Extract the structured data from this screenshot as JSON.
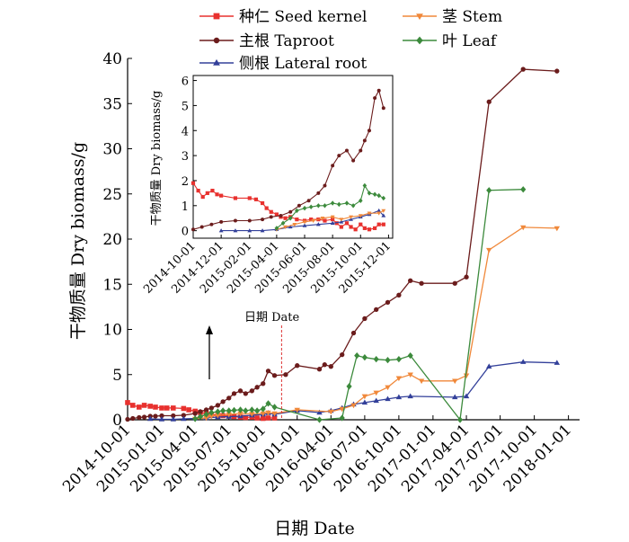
{
  "chart_data": [
    {
      "type": "line",
      "title": "",
      "xlabel": "日期 Date",
      "ylabel": "干物质量 Dry biomass/g",
      "xlim": [
        "2014-10-01",
        "2018-01-31"
      ],
      "ylim": [
        0,
        40
      ],
      "yticks": [
        0,
        5,
        10,
        15,
        20,
        25,
        30,
        35,
        40
      ],
      "xticks": [
        "2014-10-01",
        "2015-01-01",
        "2015-04-01",
        "2015-07-01",
        "2015-10-01",
        "2016-01-01",
        "2016-04-01",
        "2016-07-01",
        "2016-10-01",
        "2017-01-01",
        "2017-04-01",
        "2017-07-01",
        "2017-10-01",
        "2018-01-01"
      ],
      "legend": [
        {
          "label": "种仁 Seed kernel",
          "color": "#e8312e",
          "marker": "square"
        },
        {
          "label": "茎 Stem",
          "color": "#f0883a",
          "marker": "triangle-down"
        },
        {
          "label": "主根 Taproot",
          "color": "#6b1c1c",
          "marker": "circle"
        },
        {
          "label": "叶 Leaf",
          "color": "#3c8a3c",
          "marker": "diamond"
        },
        {
          "label": "侧根 Lateral root",
          "color": "#33409a",
          "marker": "triangle-up"
        }
      ],
      "series": [
        {
          "name": "种仁 Seed kernel",
          "color": "#e8312e",
          "marker": "square",
          "x": [
            "2014-10-01",
            "2014-10-15",
            "2014-11-01",
            "2014-11-15",
            "2014-12-01",
            "2014-12-15",
            "2015-01-01",
            "2015-01-15",
            "2015-02-01",
            "2015-03-01",
            "2015-03-15",
            "2015-04-01",
            "2015-04-15",
            "2015-05-01",
            "2015-05-15",
            "2015-06-01",
            "2015-06-15",
            "2015-07-01",
            "2015-07-15",
            "2015-08-01",
            "2015-08-15",
            "2015-09-01",
            "2015-09-15",
            "2015-10-01",
            "2015-10-15",
            "2015-11-01"
          ],
          "y": [
            1.9,
            1.6,
            1.4,
            1.6,
            1.5,
            1.4,
            1.3,
            1.3,
            1.3,
            1.25,
            1.1,
            0.95,
            0.8,
            0.7,
            0.6,
            0.5,
            0.45,
            0.4,
            0.35,
            0.3,
            0.25,
            0.3,
            0.2,
            0.15,
            0.2,
            0.2
          ]
        },
        {
          "name": "主根 Taproot",
          "color": "#6b1c1c",
          "marker": "circle",
          "x": [
            "2014-10-01",
            "2014-10-15",
            "2014-11-01",
            "2014-11-15",
            "2014-12-01",
            "2014-12-15",
            "2015-01-01",
            "2015-02-01",
            "2015-03-01",
            "2015-04-01",
            "2015-04-15",
            "2015-05-01",
            "2015-05-15",
            "2015-06-01",
            "2015-06-15",
            "2015-07-01",
            "2015-07-15",
            "2015-08-01",
            "2015-08-15",
            "2015-09-01",
            "2015-09-15",
            "2015-10-01",
            "2015-10-15",
            "2015-11-01",
            "2015-12-01",
            "2016-01-01",
            "2016-03-01",
            "2016-03-15",
            "2016-04-01",
            "2016-05-01",
            "2016-06-01",
            "2016-07-01",
            "2016-08-01",
            "2016-09-01",
            "2016-10-01",
            "2016-11-01",
            "2016-12-01",
            "2017-03-01",
            "2017-04-01",
            "2017-06-01",
            "2017-09-01",
            "2017-12-01"
          ],
          "y": [
            0.05,
            0.15,
            0.25,
            0.3,
            0.4,
            0.4,
            0.45,
            0.45,
            0.5,
            0.7,
            0.9,
            1.1,
            1.3,
            1.6,
            2.0,
            2.4,
            2.9,
            3.2,
            2.9,
            3.2,
            3.6,
            4.0,
            5.4,
            4.9,
            5.0,
            6.0,
            5.6,
            6.1,
            5.9,
            7.2,
            9.6,
            11.2,
            12.2,
            13.0,
            13.8,
            15.4,
            15.1,
            15.1,
            15.8,
            35.2,
            38.8,
            38.6
          ]
        },
        {
          "name": "侧根 Lateral root",
          "color": "#33409a",
          "marker": "triangle-up",
          "x": [
            "2014-12-01",
            "2015-01-01",
            "2015-02-01",
            "2015-03-01",
            "2015-04-01",
            "2015-05-01",
            "2015-06-01",
            "2015-07-01",
            "2015-08-01",
            "2015-09-01",
            "2015-10-01",
            "2015-10-15",
            "2015-11-01",
            "2016-01-01",
            "2016-03-01",
            "2016-04-01",
            "2016-05-01",
            "2016-06-01",
            "2016-07-01",
            "2016-08-01",
            "2016-09-01",
            "2016-10-01",
            "2016-11-01",
            "2017-03-01",
            "2017-04-01",
            "2017-06-01",
            "2017-09-01",
            "2017-12-01"
          ],
          "y": [
            0.1,
            0.05,
            0.05,
            0.1,
            0.15,
            0.2,
            0.3,
            0.35,
            0.4,
            0.5,
            0.6,
            0.75,
            0.6,
            1.0,
            0.8,
            1.0,
            1.3,
            1.7,
            1.9,
            2.1,
            2.3,
            2.5,
            2.6,
            2.5,
            2.6,
            5.9,
            6.4,
            6.3
          ]
        },
        {
          "name": "茎 Stem",
          "color": "#f0883a",
          "marker": "triangle-down",
          "x": [
            "2015-04-01",
            "2015-05-01",
            "2015-05-15",
            "2015-06-01",
            "2015-07-01",
            "2015-08-01",
            "2015-09-01",
            "2015-10-01",
            "2015-10-15",
            "2015-11-01",
            "2016-01-01",
            "2016-04-01",
            "2016-05-01",
            "2016-06-01",
            "2016-07-01",
            "2016-08-01",
            "2016-09-01",
            "2016-10-01",
            "2016-11-01",
            "2016-12-01",
            "2017-03-01",
            "2017-04-01",
            "2017-06-01",
            "2017-09-01",
            "2017-12-01"
          ],
          "y": [
            0.1,
            0.2,
            0.4,
            0.5,
            0.6,
            0.7,
            0.65,
            0.7,
            0.8,
            0.7,
            1.1,
            0.9,
            1.2,
            1.6,
            2.6,
            3.0,
            3.6,
            4.6,
            5.0,
            4.3,
            4.3,
            4.9,
            18.8,
            21.3,
            21.2
          ]
        },
        {
          "name": "叶 Leaf",
          "color": "#3c8a3c",
          "marker": "diamond",
          "x": [
            "2015-04-01",
            "2015-04-15",
            "2015-05-01",
            "2015-05-15",
            "2015-06-01",
            "2015-06-15",
            "2015-07-01",
            "2015-07-15",
            "2015-08-01",
            "2015-08-15",
            "2015-09-01",
            "2015-09-15",
            "2015-10-01",
            "2015-10-15",
            "2015-11-01",
            "2016-03-01",
            "2016-05-01",
            "2016-05-20",
            "2016-06-10",
            "2016-07-01",
            "2016-08-01",
            "2016-09-01",
            "2016-10-01",
            "2016-11-01",
            "2017-03-15",
            "2017-06-01",
            "2017-09-01"
          ],
          "y": [
            0.1,
            0.35,
            0.6,
            0.8,
            0.9,
            1.0,
            1.0,
            1.05,
            1.1,
            1.0,
            1.1,
            1.0,
            1.2,
            1.8,
            1.4,
            0.0,
            0.2,
            3.7,
            7.1,
            6.9,
            6.7,
            6.6,
            6.7,
            7.1,
            0.0,
            25.4,
            25.5
          ]
        }
      ]
    },
    {
      "type": "line",
      "title": "",
      "xlabel": "",
      "ylabel": "干物质量 Dry biomass/g",
      "xlim": [
        "2014-10-01",
        "2015-12-10"
      ],
      "ylim": [
        -0.3,
        6.2
      ],
      "yticks": [
        0,
        1,
        2,
        3,
        4,
        5,
        6
      ],
      "xticks": [
        "2014-10-01",
        "2014-12-01",
        "2015-02-01",
        "2015-04-01",
        "2015-06-01",
        "2015-08-01",
        "2015-10-01",
        "2015-12-01"
      ],
      "annotation": "日期 Date",
      "series": [
        {
          "name": "种仁 Seed kernel",
          "color": "#e8312e",
          "marker": "square",
          "x": [
            "2014-10-01",
            "2014-10-12",
            "2014-10-22",
            "2014-11-01",
            "2014-11-12",
            "2014-11-22",
            "2014-12-01",
            "2015-01-01",
            "2015-02-01",
            "2015-02-15",
            "2015-03-01",
            "2015-03-10",
            "2015-03-20",
            "2015-04-01",
            "2015-04-10",
            "2015-04-20",
            "2015-05-01",
            "2015-05-15",
            "2015-06-01",
            "2015-06-15",
            "2015-07-01",
            "2015-07-15",
            "2015-08-01",
            "2015-08-10",
            "2015-08-20",
            "2015-09-01",
            "2015-09-10",
            "2015-09-20",
            "2015-10-01",
            "2015-10-10",
            "2015-10-20",
            "2015-11-01",
            "2015-11-10",
            "2015-11-20"
          ],
          "y": [
            1.9,
            1.6,
            1.35,
            1.5,
            1.6,
            1.45,
            1.4,
            1.3,
            1.3,
            1.25,
            1.1,
            0.9,
            0.75,
            0.65,
            0.55,
            0.5,
            0.55,
            0.45,
            0.4,
            0.45,
            0.45,
            0.4,
            0.45,
            0.3,
            0.15,
            0.3,
            0.15,
            0.05,
            0.25,
            0.1,
            0.05,
            0.1,
            0.25,
            0.25
          ]
        },
        {
          "name": "主根 Taproot",
          "color": "#6b1c1c",
          "marker": "circle",
          "x": [
            "2014-10-01",
            "2014-10-20",
            "2014-11-10",
            "2014-12-01",
            "2015-01-01",
            "2015-02-01",
            "2015-03-01",
            "2015-03-20",
            "2015-04-10",
            "2015-05-01",
            "2015-05-20",
            "2015-06-10",
            "2015-07-01",
            "2015-07-15",
            "2015-08-01",
            "2015-08-15",
            "2015-09-01",
            "2015-09-15",
            "2015-10-01",
            "2015-10-10",
            "2015-10-20",
            "2015-11-01",
            "2015-11-10",
            "2015-11-20"
          ],
          "y": [
            0.05,
            0.15,
            0.25,
            0.35,
            0.4,
            0.4,
            0.45,
            0.55,
            0.6,
            0.75,
            1.0,
            1.2,
            1.5,
            1.8,
            2.6,
            3.0,
            3.2,
            2.8,
            3.2,
            3.6,
            4.0,
            5.3,
            5.6,
            4.9
          ]
        },
        {
          "name": "侧根 Lateral root",
          "color": "#33409a",
          "marker": "triangle-up",
          "x": [
            "2014-12-01",
            "2015-01-01",
            "2015-02-01",
            "2015-03-01",
            "2015-04-01",
            "2015-05-01",
            "2015-06-01",
            "2015-07-01",
            "2015-08-01",
            "2015-08-20",
            "2015-09-10",
            "2015-10-01",
            "2015-10-20",
            "2015-11-10",
            "2015-11-20"
          ],
          "y": [
            0.0,
            0.0,
            0.0,
            0.0,
            0.05,
            0.15,
            0.2,
            0.25,
            0.3,
            0.35,
            0.45,
            0.55,
            0.65,
            0.8,
            0.6
          ]
        },
        {
          "name": "茎 Stem",
          "color": "#f0883a",
          "marker": "triangle-down",
          "x": [
            "2015-04-01",
            "2015-04-20",
            "2015-05-10",
            "2015-06-01",
            "2015-06-20",
            "2015-07-10",
            "2015-08-01",
            "2015-08-20",
            "2015-09-10",
            "2015-10-01",
            "2015-10-20",
            "2015-11-10",
            "2015-11-20"
          ],
          "y": [
            0.05,
            0.15,
            0.25,
            0.35,
            0.4,
            0.5,
            0.55,
            0.45,
            0.55,
            0.6,
            0.7,
            0.7,
            0.8
          ]
        },
        {
          "name": "叶 Leaf",
          "color": "#3c8a3c",
          "marker": "diamond",
          "x": [
            "2015-04-01",
            "2015-04-15",
            "2015-05-01",
            "2015-05-15",
            "2015-06-01",
            "2015-06-15",
            "2015-07-01",
            "2015-07-15",
            "2015-08-01",
            "2015-08-15",
            "2015-09-01",
            "2015-09-15",
            "2015-10-01",
            "2015-10-10",
            "2015-10-20",
            "2015-11-01",
            "2015-11-10",
            "2015-11-20"
          ],
          "y": [
            0.1,
            0.3,
            0.5,
            0.8,
            0.9,
            0.95,
            1.0,
            1.0,
            1.1,
            1.05,
            1.1,
            1.0,
            1.2,
            1.8,
            1.5,
            1.45,
            1.4,
            1.3
          ]
        }
      ]
    }
  ]
}
